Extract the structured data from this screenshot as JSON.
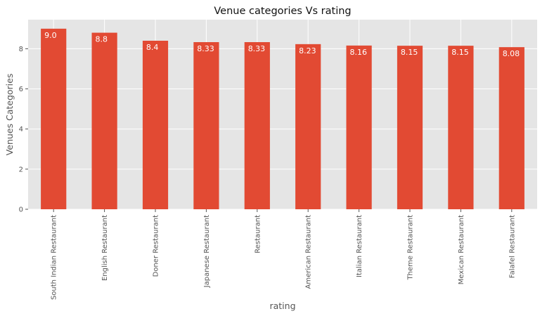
{
  "chart_data": {
    "type": "bar",
    "title": "Venue categories Vs rating",
    "xlabel": "rating",
    "ylabel": "Venues Categories",
    "categories": [
      "South Indian Restaurant",
      "English Restaurant",
      "Doner Restaurant",
      "Japanese Restaurant",
      "Restaurant",
      "American Restaurant",
      "Italian Restaurant",
      "Theme Restaurant",
      "Mexican Restaurant",
      "Falafel Restaurant"
    ],
    "values": [
      9.0,
      8.8,
      8.4,
      8.33,
      8.33,
      8.23,
      8.16,
      8.15,
      8.15,
      8.08
    ],
    "value_labels": [
      "9.0",
      "8.8",
      "8.4",
      "8.33",
      "8.33",
      "8.23",
      "8.16",
      "8.15",
      "8.15",
      "8.08"
    ],
    "ylim": [
      0,
      9.45
    ],
    "yticks": [
      0,
      2,
      4,
      6,
      8
    ],
    "ytick_labels": [
      "0",
      "2",
      "4",
      "6",
      "8"
    ],
    "grid": true,
    "bar_color": "#E24A33",
    "plot_background": "#E5E5E5",
    "grid_color": "#FFFFFF"
  }
}
